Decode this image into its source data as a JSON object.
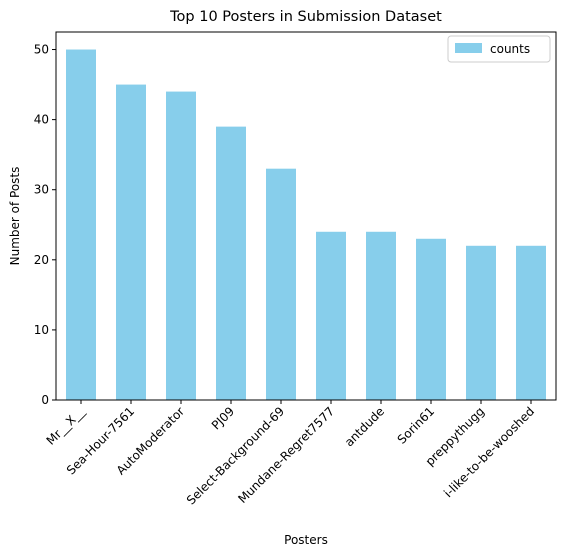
{
  "chart_data": {
    "type": "bar",
    "title": "Top 10 Posters in Submission Dataset",
    "xlabel": "Posters",
    "ylabel": "Number of Posts",
    "categories": [
      "Mr__X__",
      "Sea-Hour-7561",
      "AutoModerator",
      "PJ09",
      "Select-Background-69",
      "Mundane-Regret7577",
      "antdude",
      "Sorin61",
      "preppythugg",
      "i-like-to-be-wooshed"
    ],
    "series": [
      {
        "name": "counts",
        "values": [
          50,
          45,
          44,
          39,
          33,
          24,
          24,
          23,
          22,
          22
        ],
        "color": "#87ceeb"
      }
    ],
    "ylim": [
      0,
      52.5
    ],
    "yticks": [
      0,
      10,
      20,
      30,
      40,
      50
    ],
    "grid": false,
    "legend_position": "top-right"
  }
}
